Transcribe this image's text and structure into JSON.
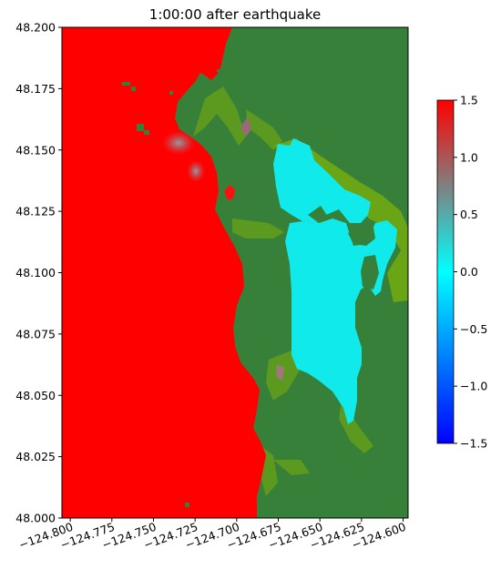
{
  "chart_data": {
    "type": "heatmap",
    "title": "1:00:00 after earthquake",
    "xlabel": "",
    "ylabel": "",
    "xlim": [
      -124.805,
      -124.597
    ],
    "ylim": [
      48.0,
      48.2
    ],
    "x_ticks": [
      -124.8,
      -124.775,
      -124.75,
      -124.725,
      -124.7,
      -124.675,
      -124.65,
      -124.625,
      -124.6
    ],
    "x_tick_labels": [
      "−124.800",
      "−124.775",
      "−124.750",
      "−124.725",
      "−124.700",
      "−124.675",
      "−124.650",
      "−124.625",
      "−124.600"
    ],
    "y_ticks": [
      48.0,
      48.025,
      48.05,
      48.075,
      48.1,
      48.125,
      48.15,
      48.175,
      48.2
    ],
    "y_tick_labels": [
      "48.000",
      "48.025",
      "48.050",
      "48.075",
      "48.100",
      "48.125",
      "48.150",
      "48.175",
      "48.200"
    ],
    "colorbar": {
      "vmin": -1.5,
      "vmax": 1.5,
      "ticks": [
        -1.5,
        -1.0,
        -0.5,
        0.0,
        0.5,
        1.0,
        1.5
      ],
      "tick_labels": [
        "−1.5",
        "−1.0",
        "−0.5",
        "0.0",
        "0.5",
        "1.0",
        "1.5"
      ],
      "color_stops": [
        {
          "value": -1.5,
          "color": "#0000ff"
        },
        {
          "value": 0.0,
          "color": "#00ffff"
        },
        {
          "value": 0.75,
          "color": "#808080"
        },
        {
          "value": 1.5,
          "color": "#ff0000"
        }
      ]
    },
    "regions": [
      {
        "name": "open-ocean",
        "surface_value": 1.5,
        "color": "#ff0000"
      },
      {
        "name": "bay-water",
        "surface_value": 0.0,
        "color": "#11eaea"
      },
      {
        "name": "land",
        "color": "#37803a"
      },
      {
        "name": "inundated-shore",
        "color": "#5b9a1f"
      }
    ],
    "grid": false
  }
}
